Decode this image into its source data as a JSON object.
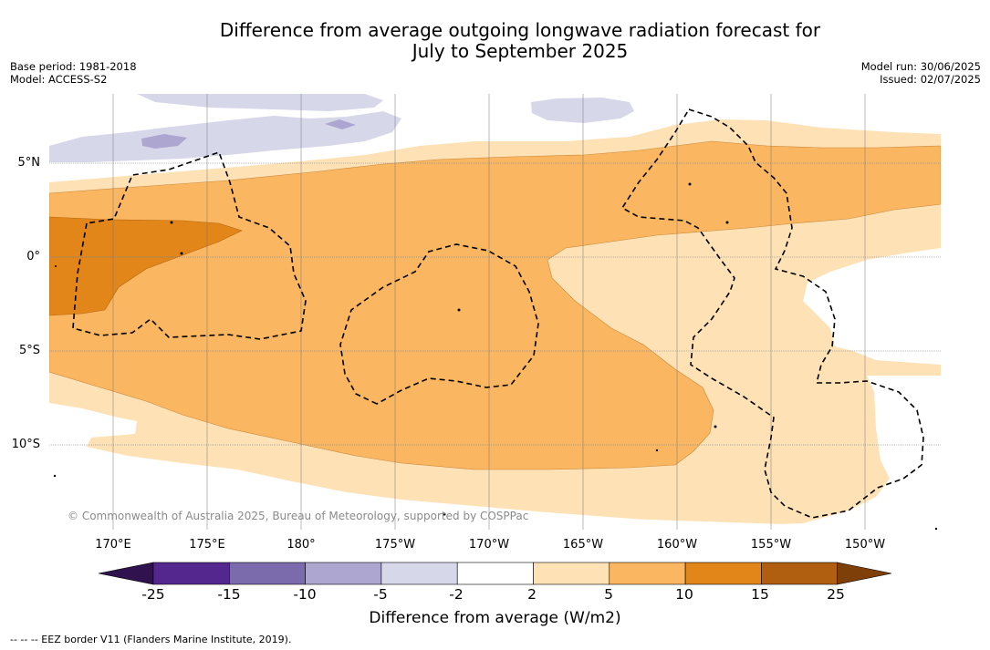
{
  "title_line1": "Difference from average outgoing longwave radiation forecast for",
  "title_line2": "July to September 2025",
  "base_period": "Base period: 1981-2018",
  "model": "Model: ACCESS-S2",
  "model_run": "Model run: 30/06/2025",
  "issued": "Issued: 02/07/2025",
  "lat_labels": [
    "5°N",
    "0°",
    "5°S",
    "10°S"
  ],
  "lon_labels": [
    "170°E",
    "175°E",
    "180°",
    "175°W",
    "170°W",
    "165°W",
    "160°W",
    "155°W",
    "150°W"
  ],
  "copyright": "© Commonwealth of Australia 2025, Bureau of Meteorology, supported by COSPPac",
  "colorbar": {
    "ticks": [
      "-25",
      "-15",
      "-10",
      "-5",
      "-2",
      "2",
      "5",
      "10",
      "15",
      "25"
    ],
    "label": "Difference from average (W/m2)",
    "colors": [
      "#54278f",
      "#7b6aac",
      "#aca6d0",
      "#d7d7ea",
      "#ffffff",
      "#fee1b4",
      "#fbb661",
      "#e2861a",
      "#b05e10"
    ],
    "under_color": "#30124f",
    "over_color": "#7e3f08"
  },
  "eez_legend": "--  --  -- EEZ border V11 (Flanders Marine Institute, 2019)."
}
